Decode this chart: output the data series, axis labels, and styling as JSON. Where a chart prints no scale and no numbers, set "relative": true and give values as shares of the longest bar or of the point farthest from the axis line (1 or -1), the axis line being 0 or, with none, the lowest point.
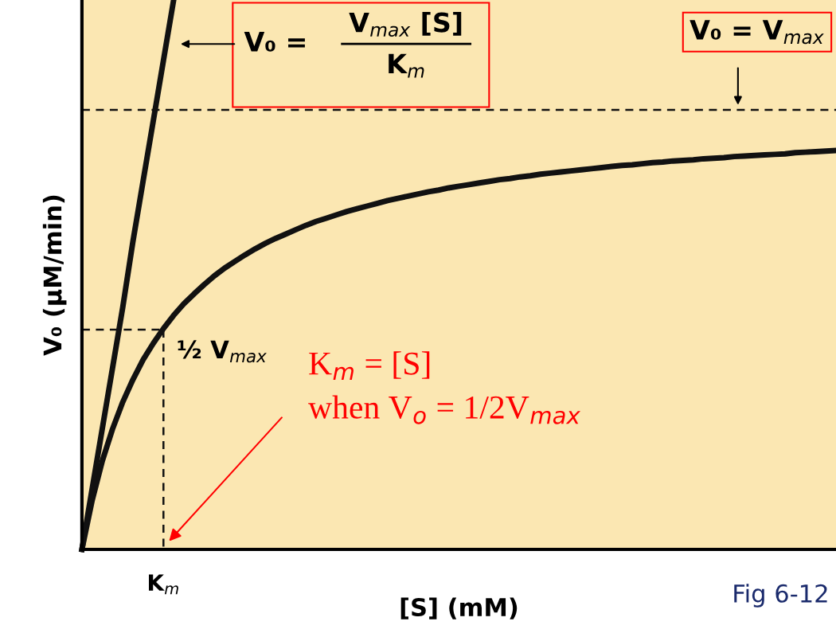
{
  "chart_data": {
    "type": "line",
    "relative": true,
    "xlabel": "[S] (mM)",
    "ylabel": "V₀ (μM/min)",
    "categories": [
      null,
      null,
      null,
      null,
      null,
      null,
      null,
      null,
      null,
      null,
      null,
      null,
      null,
      null,
      null,
      null,
      null,
      null,
      null,
      null,
      null,
      null,
      null,
      null,
      null,
      null,
      null,
      null,
      null,
      null,
      null,
      null,
      null,
      null,
      null,
      null,
      null,
      null,
      null,
      null,
      null,
      null,
      null,
      null,
      null,
      null,
      null,
      null,
      null,
      null,
      null,
      null,
      null,
      null,
      null,
      null,
      null,
      null,
      null,
      null,
      null,
      null,
      null,
      null,
      null,
      null,
      null,
      null,
      null,
      null,
      null,
      null,
      null,
      null,
      null
    ],
    "grid": false,
    "marker": "none",
    "series": [
      {
        "color": "#111111",
        "line_style": "solid",
        "values": [
          0,
          0.089,
          0.161,
          0.219,
          0.268,
          0.309,
          0.345,
          0.375,
          0.402,
          0.426,
          0.447,
          0.465,
          0.482,
          0.498,
          0.512,
          0.524,
          0.536,
          0.547,
          0.557,
          0.566,
          0.574,
          0.582,
          0.59,
          0.597,
          0.603,
          0.609,
          0.615,
          0.62,
          0.625,
          0.63,
          0.635,
          0.639,
          0.643,
          0.647,
          0.651,
          0.654,
          0.658,
          0.661,
          0.664,
          0.667,
          0.67,
          0.673,
          0.675,
          0.678,
          0.68,
          0.683,
          0.685,
          0.687,
          0.689,
          0.691,
          0.693,
          0.695,
          0.697,
          0.699,
          0.7,
          0.702,
          0.704,
          0.705,
          0.707,
          0.708,
          0.709,
          0.711,
          0.712,
          0.713,
          0.715,
          0.716,
          0.717,
          0.718,
          0.719,
          0.72,
          0.722,
          0.723,
          0.724,
          0.725,
          0.726
        ]
      },
      {
        "color": "#111111",
        "line_style": "solid",
        "values": [
          0,
          0.11,
          0.22,
          0.33,
          0.44,
          0.56,
          0.67,
          0.78,
          0.89,
          1,
          null,
          null,
          null,
          null,
          null,
          null,
          null,
          null,
          null,
          null,
          null,
          null,
          null,
          null,
          null,
          null,
          null,
          null,
          null,
          null,
          null,
          null,
          null,
          null,
          null,
          null,
          null,
          null,
          null,
          null,
          null,
          null,
          null,
          null,
          null,
          null,
          null,
          null,
          null,
          null,
          null,
          null,
          null,
          null,
          null,
          null,
          null,
          null,
          null,
          null,
          null,
          null,
          null,
          null,
          null,
          null,
          null,
          null,
          null,
          null,
          null,
          null,
          null,
          null,
          null
        ]
      },
      {
        "color": "#111111",
        "line_style": "dashed",
        "values": [
          0.4,
          0.4,
          0.4,
          0.4,
          0.4,
          0.4,
          0.4,
          0.4,
          0.4,
          null,
          null,
          null,
          null,
          null,
          null,
          null,
          null,
          null,
          null,
          null,
          null,
          null,
          null,
          null,
          null,
          null,
          null,
          null,
          null,
          null,
          null,
          null,
          null,
          null,
          null,
          null,
          null,
          null,
          null,
          null,
          null,
          null,
          null,
          null,
          null,
          null,
          null,
          null,
          null,
          null,
          null,
          null,
          null,
          null,
          null,
          null,
          null,
          null,
          null,
          null,
          null,
          null,
          null,
          null,
          null,
          null,
          null,
          null,
          null,
          null,
          null,
          null,
          null,
          null,
          null
        ]
      }
    ],
    "ref_lines": [
      {
        "axis": "y",
        "value": 0.8,
        "label": "V₀ = V$_{max}$",
        "line_style": "dashed",
        "color": "#111111"
      }
    ],
    "annotations": [
      "V₀ =",
      "V$_{max}$ [S]",
      "K$_{m}$",
      "½ V$_{max}$",
      "K$_{m}$ = [S]\nwhen V$_{o}$ = 1/2V$_{max}$",
      "Fig 6-12",
      "K$_{m}$"
    ]
  }
}
